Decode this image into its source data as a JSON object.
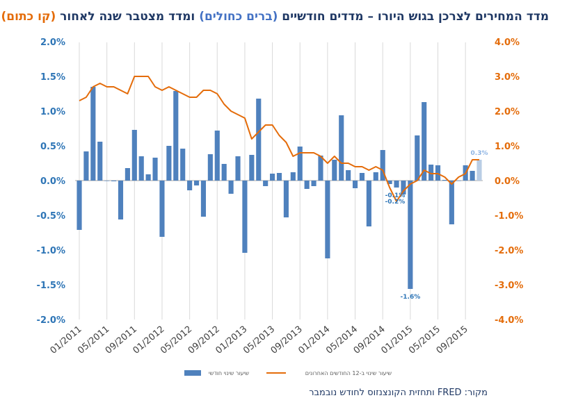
{
  "title": {
    "part1": "מדד המחירים לצרכן בגוש היורו – מדדים חודשיים ",
    "part2": "(ברים כחולים)",
    "part3": " ומדד מצטבר שנה לאחור ",
    "part4": "(קו כתום)"
  },
  "source": "מקור: FRED ותחזית הקונצנזוס לחודש נובמבר",
  "colors": {
    "bars": "#4f81bd",
    "bar_forecast": "#b9cde5",
    "line": "#e46c0a",
    "left_axis": "#2e75b6",
    "right_axis": "#e46c0a"
  },
  "chart_data": {
    "type": "bar+line",
    "x_tick_labels": [
      "01/2011",
      "05/2011",
      "09/2011",
      "01/2012",
      "05/2012",
      "09/2012",
      "01/2013",
      "05/2013",
      "09/2013",
      "01/2014",
      "05/2014",
      "09/2014",
      "01/2015",
      "05/2015",
      "09/2015"
    ],
    "left_axis": {
      "ticks": [
        "2.0%",
        "1.5%",
        "1.0%",
        "0.5%",
        "0.0%",
        "-0.5%",
        "-1.0%",
        "-1.5%",
        "-2.0%"
      ],
      "min": -2.0,
      "max": 2.0
    },
    "right_axis": {
      "ticks": [
        "4.0%",
        "3.0%",
        "2.0%",
        "1.0%",
        "0.0%",
        "-1.0%",
        "-2.0%",
        "-3.0%",
        "-4.0%"
      ],
      "min": -4.0,
      "max": 4.0
    },
    "legend": {
      "bars": "שיעור שינוי חודשי",
      "line": "שיעור שינוי ב-12 החודשים האחרונים"
    },
    "series": [
      {
        "name": "שיעור שינוי חודשי",
        "type": "bar",
        "axis": "left",
        "values": [
          -0.71,
          0.42,
          1.35,
          0.56,
          0.0,
          -0.01,
          -0.56,
          0.18,
          0.73,
          0.35,
          0.09,
          0.33,
          -0.81,
          0.5,
          1.29,
          0.46,
          -0.14,
          -0.07,
          -0.52,
          0.38,
          0.72,
          0.24,
          -0.19,
          0.35,
          -1.04,
          0.37,
          1.18,
          -0.08,
          0.1,
          0.11,
          -0.53,
          0.12,
          0.49,
          -0.12,
          -0.08,
          0.36,
          -1.12,
          0.3,
          0.94,
          0.15,
          -0.11,
          0.11,
          -0.66,
          0.12,
          0.44,
          -0.05,
          -0.1,
          -0.2,
          -1.56,
          0.65,
          1.13,
          0.23,
          0.22,
          0.01,
          -0.63,
          0.0,
          0.22,
          0.14,
          0.3
        ]
      },
      {
        "name": "שיעור שינוי ב-12 החודשים האחרונים",
        "type": "line",
        "axis": "right",
        "values": [
          2.3,
          2.4,
          2.7,
          2.8,
          2.7,
          2.7,
          2.6,
          2.5,
          3.0,
          3.0,
          3.0,
          2.7,
          2.6,
          2.7,
          2.6,
          2.5,
          2.4,
          2.4,
          2.6,
          2.6,
          2.5,
          2.2,
          2.0,
          1.9,
          1.8,
          1.2,
          1.4,
          1.6,
          1.6,
          1.3,
          1.1,
          0.7,
          0.8,
          0.8,
          0.8,
          0.7,
          0.5,
          0.7,
          0.5,
          0.5,
          0.4,
          0.4,
          0.3,
          0.4,
          0.3,
          -0.2,
          -0.6,
          -0.3,
          -0.1,
          0.0,
          0.3,
          0.2,
          0.2,
          0.1,
          -0.1,
          0.1,
          0.2,
          0.6,
          0.6
        ]
      }
    ],
    "forecast_index": 58,
    "data_labels": [
      {
        "index": 46,
        "text": "-0.1%"
      },
      {
        "index": 47,
        "text": "-0.2%"
      },
      {
        "index": 48,
        "text": "-1.6%"
      },
      {
        "index": 58,
        "text": "0.3%"
      }
    ]
  }
}
